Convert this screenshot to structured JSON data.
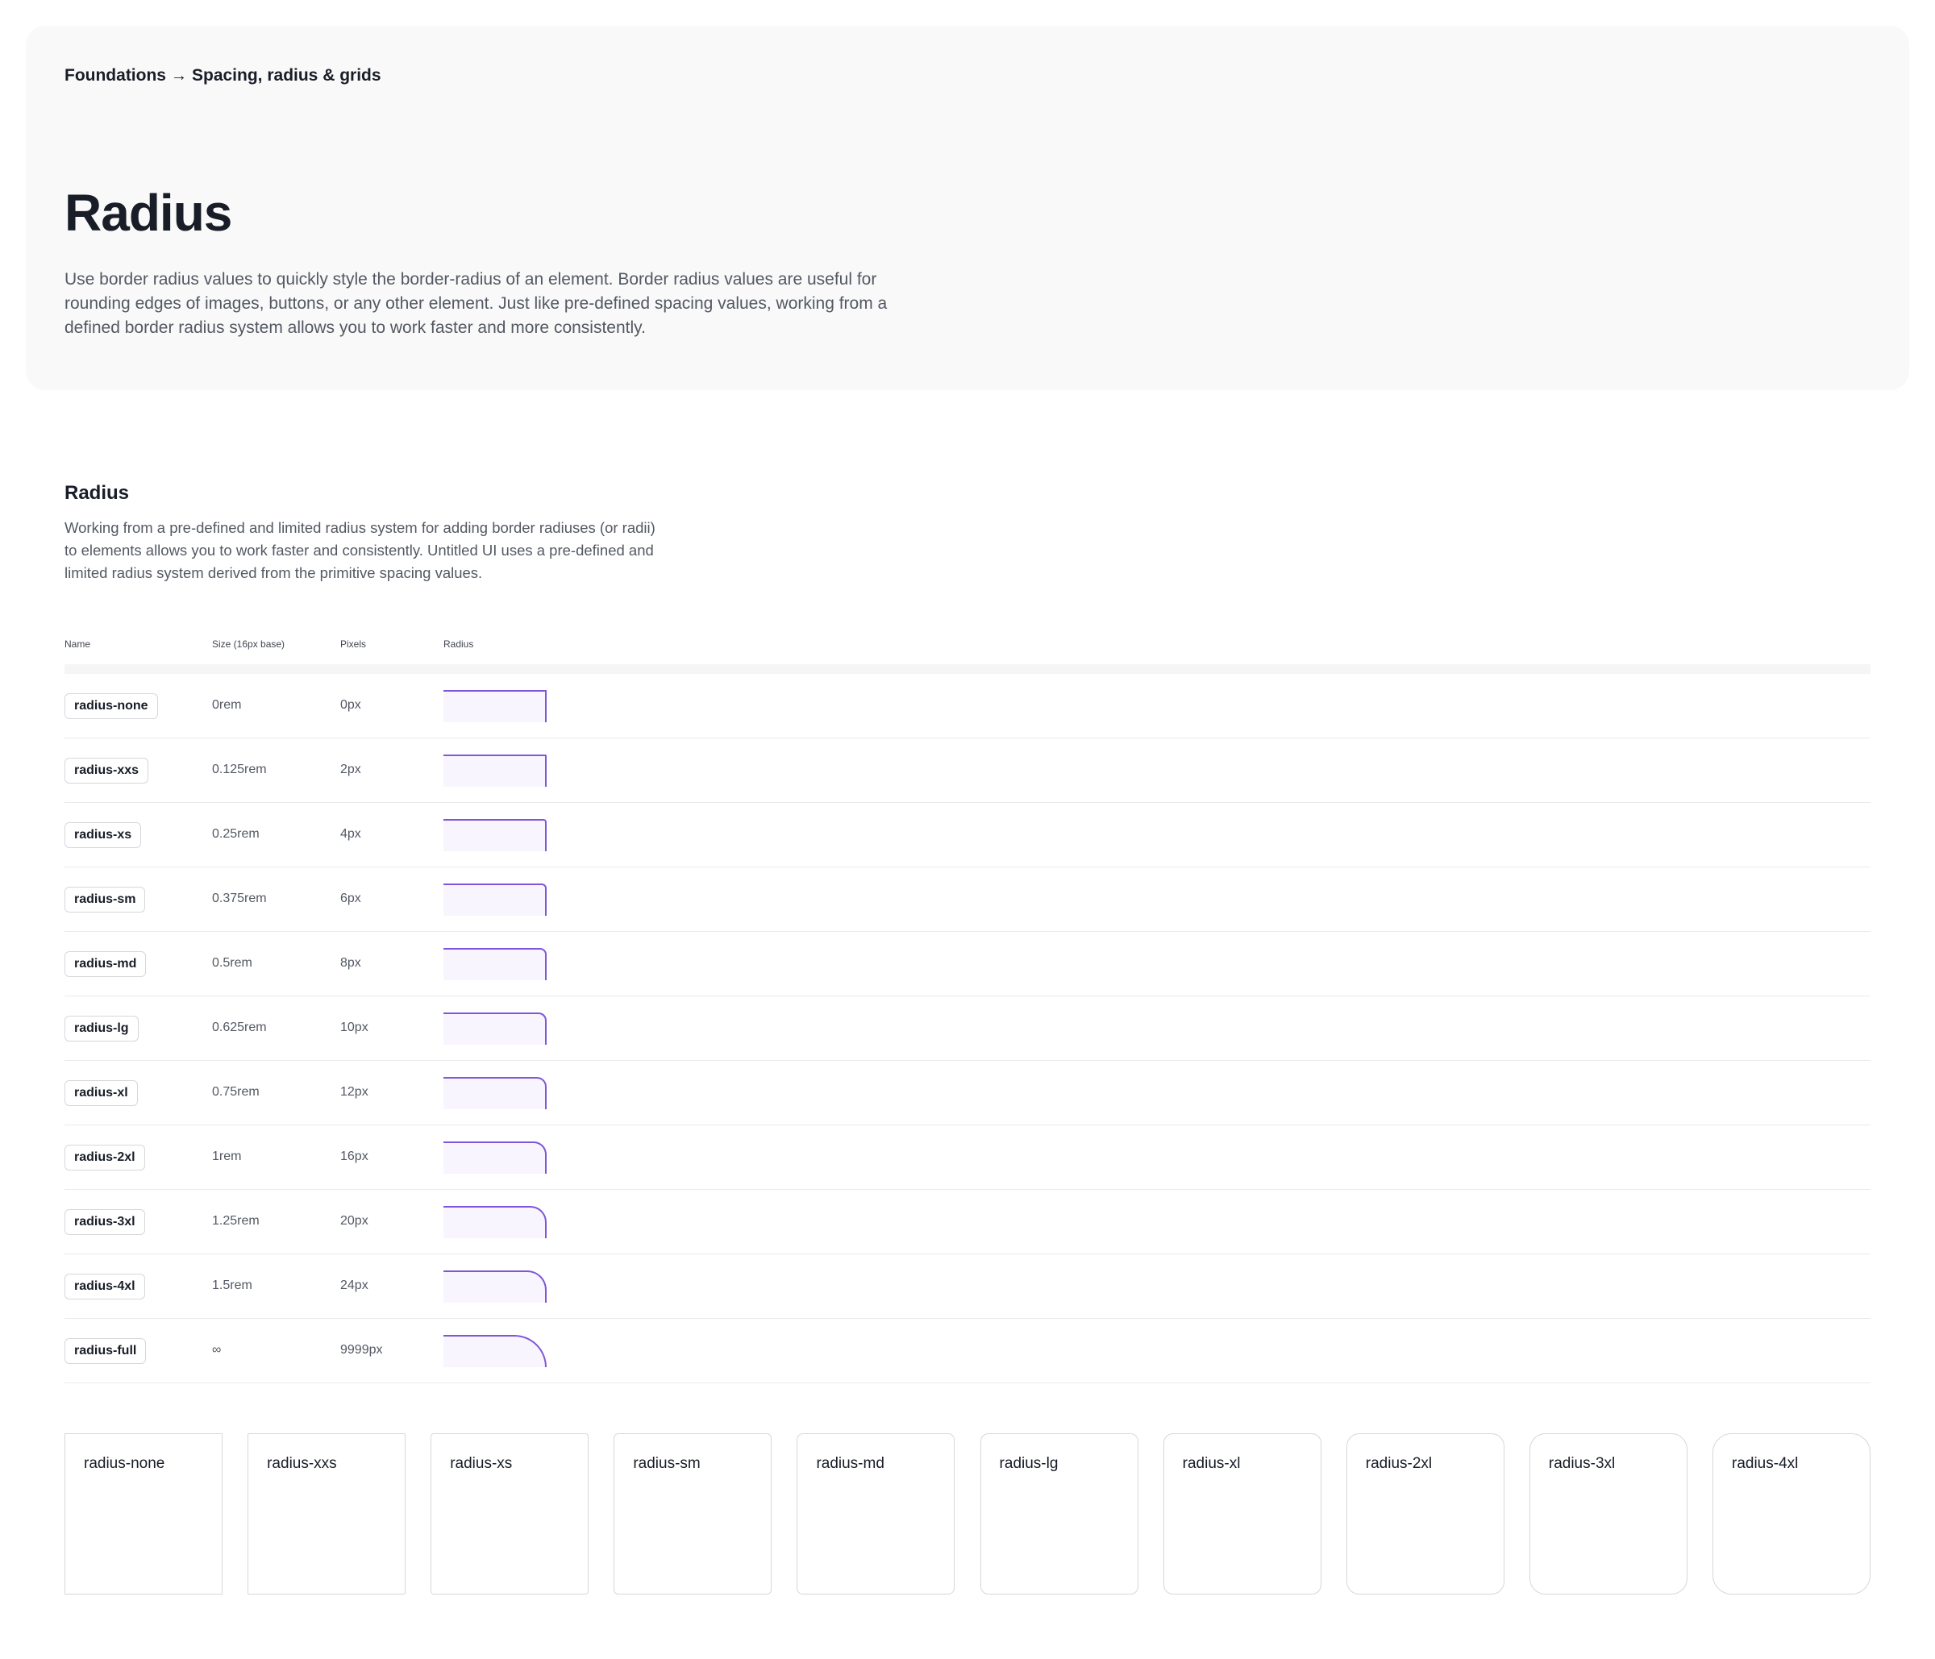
{
  "breadcrumb": {
    "parent": "Foundations",
    "arrow": "→",
    "current": "Spacing, radius & grids"
  },
  "hero": {
    "title": "Radius",
    "description": "Use border radius values to quickly style the border-radius of an element. Border radius values are useful for rounding edges of images, buttons, or any other element. Just like pre-defined spacing values, working from a defined border radius system allows you to work faster and more consistently."
  },
  "section": {
    "title": "Radius",
    "description": "Working from a pre-defined and limited radius system for adding border radiuses (or radii) to elements allows you to work faster and consistently. Untitled UI uses a pre-defined and limited radius system derived from the primitive spacing values."
  },
  "table": {
    "headers": {
      "name": "Name",
      "size": "Size (16px base)",
      "pixels": "Pixels",
      "radius": "Radius"
    },
    "rows": [
      {
        "name": "radius-none",
        "size": "0rem",
        "pixels": "0px",
        "radius": 0
      },
      {
        "name": "radius-xxs",
        "size": "0.125rem",
        "pixels": "2px",
        "radius": 2
      },
      {
        "name": "radius-xs",
        "size": "0.25rem",
        "pixels": "4px",
        "radius": 4
      },
      {
        "name": "radius-sm",
        "size": "0.375rem",
        "pixels": "6px",
        "radius": 6
      },
      {
        "name": "radius-md",
        "size": "0.5rem",
        "pixels": "8px",
        "radius": 8
      },
      {
        "name": "radius-lg",
        "size": "0.625rem",
        "pixels": "10px",
        "radius": 10
      },
      {
        "name": "radius-xl",
        "size": "0.75rem",
        "pixels": "12px",
        "radius": 12
      },
      {
        "name": "radius-2xl",
        "size": "1rem",
        "pixels": "16px",
        "radius": 16
      },
      {
        "name": "radius-3xl",
        "size": "1.25rem",
        "pixels": "20px",
        "radius": 20
      },
      {
        "name": "radius-4xl",
        "size": "1.5rem",
        "pixels": "24px",
        "radius": 24
      },
      {
        "name": "radius-full",
        "size": "∞",
        "pixels": "9999px",
        "radius": 9999
      }
    ]
  },
  "cards": [
    {
      "label": "radius-none",
      "radius": 0
    },
    {
      "label": "radius-xxs",
      "radius": 2
    },
    {
      "label": "radius-xs",
      "radius": 4
    },
    {
      "label": "radius-sm",
      "radius": 6
    },
    {
      "label": "radius-md",
      "radius": 8
    },
    {
      "label": "radius-lg",
      "radius": 10
    },
    {
      "label": "radius-xl",
      "radius": 12
    },
    {
      "label": "radius-2xl",
      "radius": 16
    },
    {
      "label": "radius-3xl",
      "radius": 20
    },
    {
      "label": "radius-4xl",
      "radius": 24
    }
  ],
  "colors": {
    "accent": "#7f56d9",
    "swatch_fill": "#f9f5ff",
    "hero_bg": "#f9f9f9",
    "text_primary": "#181d27",
    "text_secondary": "#535862",
    "border": "#d5d7da"
  }
}
